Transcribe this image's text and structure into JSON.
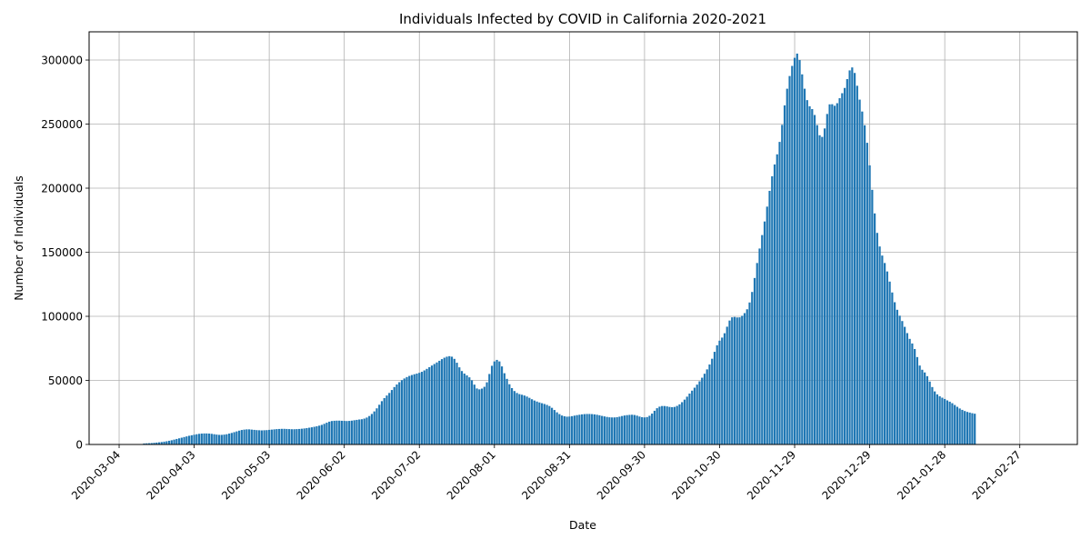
{
  "chart_data": {
    "type": "bar",
    "title": "Individuals Infected by COVID in California 2020-2021",
    "xlabel": "Date",
    "ylabel": "Number of Individuals",
    "xlim": [
      "2020-02-21",
      "2021-03-22"
    ],
    "ylim": [
      0,
      322000
    ],
    "grid": true,
    "bar_color": "#1f77b4",
    "x_ticks": [
      "2020-03-04",
      "2020-04-03",
      "2020-05-03",
      "2020-06-02",
      "2020-07-02",
      "2020-08-01",
      "2020-08-31",
      "2020-09-30",
      "2020-10-30",
      "2020-11-29",
      "2020-12-29",
      "2021-01-28",
      "2021-02-27"
    ],
    "y_ticks": [
      0,
      50000,
      100000,
      150000,
      200000,
      250000,
      300000
    ],
    "x_start": "2020-03-14",
    "values": [
      800,
      900,
      1000,
      1100,
      1300,
      1500,
      1700,
      1900,
      2200,
      2500,
      2900,
      3300,
      3800,
      4300,
      4800,
      5300,
      5800,
      6300,
      6800,
      7200,
      7600,
      8000,
      8300,
      8500,
      8600,
      8600,
      8500,
      8300,
      8000,
      7700,
      7500,
      7500,
      7700,
      8000,
      8500,
      9000,
      9600,
      10200,
      10800,
      11300,
      11600,
      11800,
      11800,
      11600,
      11400,
      11200,
      11100,
      11000,
      11100,
      11200,
      11400,
      11600,
      11800,
      12000,
      12100,
      12200,
      12200,
      12100,
      12000,
      11900,
      11900,
      12000,
      12100,
      12300,
      12500,
      12800,
      13100,
      13400,
      13800,
      14200,
      14700,
      15300,
      16100,
      17000,
      17800,
      18300,
      18500,
      18600,
      18600,
      18500,
      18400,
      18300,
      18400,
      18600,
      18900,
      19200,
      19500,
      19700,
      20200,
      21000,
      22200,
      23800,
      25800,
      28200,
      31000,
      33800,
      36200,
      38200,
      40200,
      42500,
      44800,
      46800,
      48600,
      50200,
      51500,
      52600,
      53500,
      54200,
      54800,
      55300,
      55900,
      56700,
      57800,
      59000,
      60300,
      61600,
      62800,
      64000,
      65300,
      66600,
      67700,
      68500,
      68900,
      68500,
      66800,
      63800,
      60200,
      57300,
      55300,
      53900,
      52400,
      50100,
      46700,
      43700,
      43000,
      43600,
      45000,
      48500,
      55000,
      61400,
      64800,
      66000,
      64800,
      60900,
      55600,
      51200,
      47000,
      44000,
      41700,
      40200,
      39300,
      38800,
      38200,
      37400,
      36400,
      35300,
      34300,
      33500,
      32800,
      32200,
      31600,
      30900,
      30000,
      28600,
      26900,
      25100,
      23700,
      22600,
      22000,
      21700,
      21800,
      22100,
      22500,
      22900,
      23200,
      23500,
      23700,
      23800,
      23800,
      23700,
      23500,
      23200,
      22800,
      22300,
      21900,
      21500,
      21200,
      21100,
      21100,
      21300,
      21700,
      22200,
      22600,
      22900,
      23100,
      23200,
      23000,
      22500,
      21800,
      21300,
      21100,
      21400,
      22400,
      24100,
      26300,
      28300,
      29500,
      30000,
      30000,
      29700,
      29300,
      29100,
      29300,
      30100,
      31300,
      33000,
      35000,
      37300,
      39700,
      42000,
      44300,
      46700,
      49300,
      52100,
      55200,
      58600,
      62400,
      66900,
      72300,
      77400,
      81000,
      83400,
      86800,
      91900,
      96700,
      99200,
      99500,
      99100,
      99200,
      100400,
      102500,
      105500,
      110800,
      119000,
      129900,
      141600,
      152900,
      163400,
      174000,
      185600,
      197900,
      209300,
      218500,
      226400,
      236100,
      249400,
      264600,
      277600,
      287500,
      295400,
      301700,
      305000,
      300000,
      288800,
      277600,
      268700,
      263900,
      261700,
      257100,
      249200,
      241300,
      240000,
      246600,
      257900,
      265400,
      265500,
      264300,
      266300,
      270200,
      274100,
      278200,
      285100,
      291900,
      294200,
      289900,
      279900,
      269100,
      259800,
      249100,
      235400,
      217800,
      198700,
      180300,
      165100,
      154500,
      147400,
      141600,
      135000,
      127100,
      118600,
      111000,
      105100,
      100500,
      96300,
      91800,
      86900,
      82400,
      78800,
      74500,
      68200,
      61600,
      58300,
      56200,
      53300,
      49100,
      44800,
      41400,
      39100,
      37600,
      36500,
      35500,
      34400,
      33400,
      32200,
      30800,
      29400,
      28100,
      27000,
      26100,
      25400,
      24900,
      24400,
      24000
    ]
  }
}
